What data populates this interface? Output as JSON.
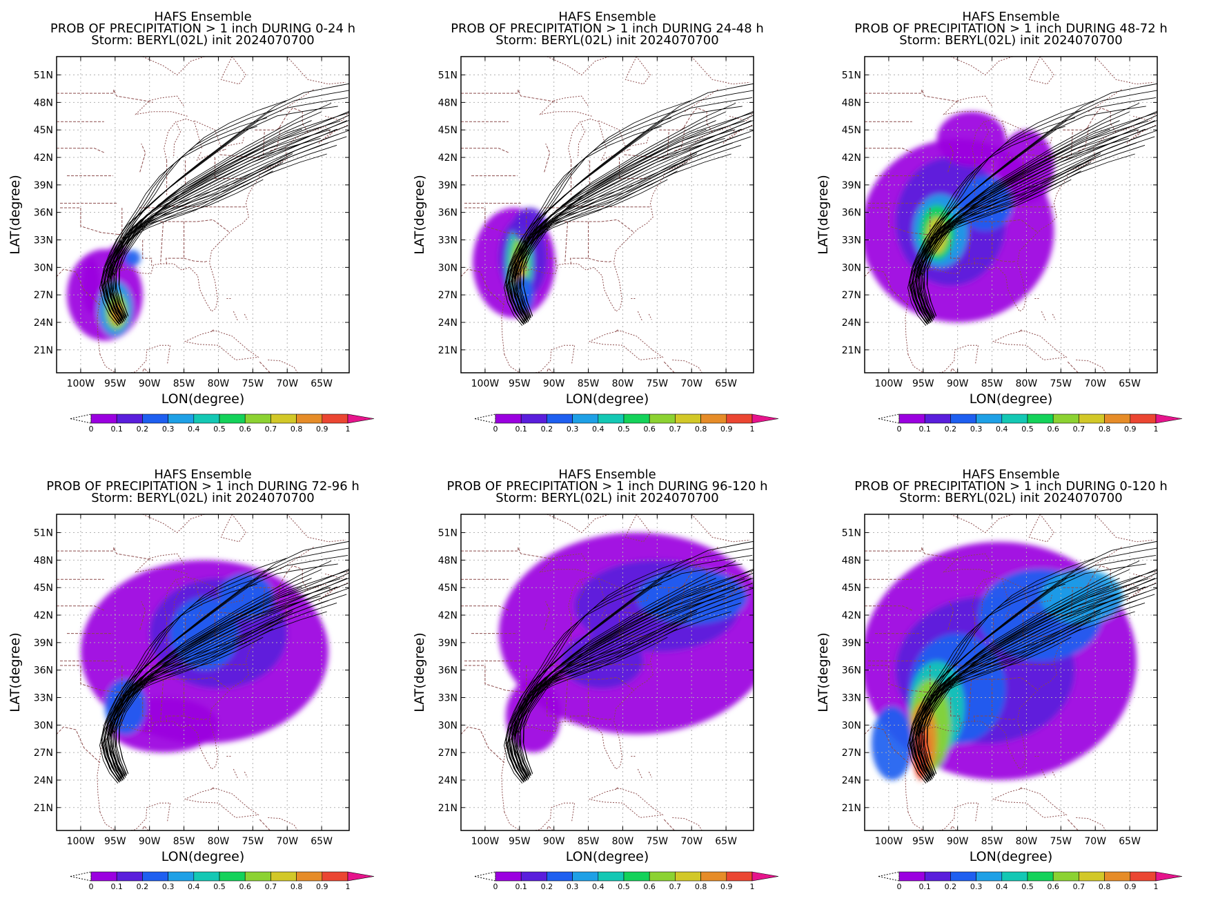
{
  "palette": [
    "#9b00e0",
    "#5a1edc",
    "#1e5ff0",
    "#1ea0e6",
    "#14c8b4",
    "#14d25a",
    "#8cd232",
    "#d2c828",
    "#e68c28",
    "#eb4632",
    "#e6148c"
  ],
  "panels": [
    {
      "line1": "HAFS Ensemble",
      "line2": "PROB OF PRECIPITATION > 1 inch DURING  0-24 h",
      "line3": "Storm: BERYL(02L) init 2024070700",
      "period": "0-24"
    },
    {
      "line1": "HAFS Ensemble",
      "line2": "PROB OF PRECIPITATION > 1 inch DURING 24-48 h",
      "line3": "Storm: BERYL(02L) init 2024070700",
      "period": "24-48"
    },
    {
      "line1": "HAFS Ensemble",
      "line2": "PROB OF PRECIPITATION > 1 inch DURING 48-72 h",
      "line3": "Storm: BERYL(02L) init 2024070700",
      "period": "48-72"
    },
    {
      "line1": "HAFS Ensemble",
      "line2": "PROB OF PRECIPITATION > 1 inch DURING 72-96 h",
      "line3": "Storm: BERYL(02L) init 2024070700",
      "period": "72-96"
    },
    {
      "line1": "HAFS Ensemble",
      "line2": "PROB OF PRECIPITATION > 1 inch DURING 96-120 h",
      "line3": "Storm: BERYL(02L) init 2024070700",
      "period": "96-120"
    },
    {
      "line1": "HAFS Ensemble",
      "line2": "PROB OF PRECIPITATION > 1 inch DURING 0-120 h",
      "line3": "Storm: BERYL(02L) init 2024070700",
      "period": "0-120"
    }
  ],
  "axes": {
    "xlabel": "LON(degree)",
    "ylabel": "LAT(degree)",
    "lon_ticks": [
      "100W",
      "95W",
      "90W",
      "85W",
      "80W",
      "75W",
      "70W",
      "65W"
    ],
    "lat_ticks": [
      "51N",
      "48N",
      "45N",
      "42N",
      "39N",
      "36N",
      "33N",
      "30N",
      "27N",
      "24N",
      "21N"
    ]
  },
  "colorbar": {
    "labels": [
      "0",
      "0.1",
      "0.2",
      "0.3",
      "0.4",
      "0.5",
      "0.6",
      "0.7",
      "0.8",
      "0.9",
      "1"
    ]
  }
}
